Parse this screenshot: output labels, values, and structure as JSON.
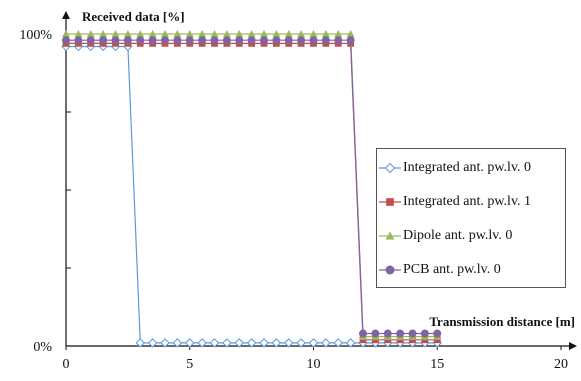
{
  "chart_data": {
    "type": "line",
    "title": "",
    "ylabel": "Received data [%]",
    "xlabel": "Transmission distance [m]",
    "xlim": [
      0,
      20
    ],
    "ylim": [
      0,
      100
    ],
    "x_ticks": [
      "0",
      "5",
      "10",
      "15",
      "20"
    ],
    "y_ticks": [
      "0%",
      "100%"
    ],
    "legend_position": "right",
    "series": [
      {
        "name": "Integrated ant. pw.lv. 0",
        "color": "#5b9bd5",
        "marker": "diamond-open",
        "x": [
          0,
          0.5,
          1,
          1.5,
          2,
          2.5,
          3,
          3.5,
          4,
          4.5,
          5,
          5.5,
          6,
          6.5,
          7,
          7.5,
          8,
          8.5,
          9,
          9.5,
          10,
          10.5,
          11,
          11.5,
          12,
          12.5,
          13,
          13.5,
          14,
          14.5,
          15
        ],
        "y": [
          96,
          96,
          96,
          96,
          96,
          96,
          1,
          1,
          1,
          1,
          1,
          1,
          1,
          1,
          1,
          1,
          1,
          1,
          1,
          1,
          1,
          1,
          1,
          1,
          1,
          1,
          1,
          1,
          1,
          1,
          1
        ]
      },
      {
        "name": "Integrated ant. pw.lv. 1",
        "color": "#c0504d",
        "marker": "square",
        "x": [
          0,
          0.5,
          1,
          1.5,
          2,
          2.5,
          3,
          3.5,
          4,
          4.5,
          5,
          5.5,
          6,
          6.5,
          7,
          7.5,
          8,
          8.5,
          9,
          9.5,
          10,
          10.5,
          11,
          11.5,
          12,
          12.5,
          13,
          13.5,
          14,
          14.5,
          15
        ],
        "y": [
          97,
          97,
          97,
          97,
          97,
          97,
          97,
          97,
          97,
          97,
          97,
          97,
          97,
          97,
          97,
          97,
          97,
          97,
          97,
          97,
          97,
          97,
          97,
          97,
          2,
          2,
          2,
          2,
          2,
          2,
          2
        ]
      },
      {
        "name": "Dipole ant. pw.lv. 0",
        "color": "#9bbb59",
        "marker": "triangle",
        "x": [
          0,
          0.5,
          1,
          1.5,
          2,
          2.5,
          3,
          3.5,
          4,
          4.5,
          5,
          5.5,
          6,
          6.5,
          7,
          7.5,
          8,
          8.5,
          9,
          9.5,
          10,
          10.5,
          11,
          11.5,
          12,
          12.5,
          13,
          13.5,
          14,
          14.5,
          15
        ],
        "y": [
          100,
          100,
          100,
          100,
          100,
          100,
          100,
          100,
          100,
          100,
          100,
          100,
          100,
          100,
          100,
          100,
          100,
          100,
          100,
          100,
          100,
          100,
          100,
          100,
          3,
          3,
          3,
          3,
          3,
          3,
          3
        ]
      },
      {
        "name": "PCB ant. pw.lv. 0",
        "color": "#8064a2",
        "marker": "circle",
        "x": [
          0,
          0.5,
          1,
          1.5,
          2,
          2.5,
          3,
          3.5,
          4,
          4.5,
          5,
          5.5,
          6,
          6.5,
          7,
          7.5,
          8,
          8.5,
          9,
          9.5,
          10,
          10.5,
          11,
          11.5,
          12,
          12.5,
          13,
          13.5,
          14,
          14.5,
          15
        ],
        "y": [
          98,
          98,
          98,
          98,
          98,
          98,
          98,
          98,
          98,
          98,
          98,
          98,
          98,
          98,
          98,
          98,
          98,
          98,
          98,
          98,
          98,
          98,
          98,
          98,
          4,
          4,
          4,
          4,
          4,
          4,
          4
        ]
      }
    ]
  }
}
